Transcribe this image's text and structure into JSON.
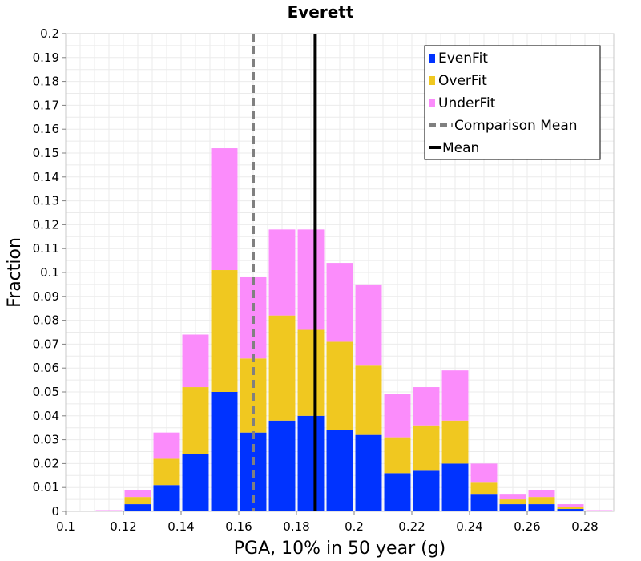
{
  "chart_data": {
    "type": "bar",
    "stacked": true,
    "title": "Everett",
    "xlabel": "PGA, 10% in 50 year (g)",
    "ylabel": "Fraction",
    "xlim": [
      0.1,
      0.29
    ],
    "ylim": [
      0,
      0.2
    ],
    "xticks": [
      "0.1",
      "0.12",
      "0.14",
      "0.16",
      "0.18",
      "0.2",
      "0.22",
      "0.24",
      "0.26",
      "0.28"
    ],
    "yticks": [
      "0",
      "0.01",
      "0.02",
      "0.03",
      "0.04",
      "0.05",
      "0.06",
      "0.07",
      "0.08",
      "0.09",
      "0.1",
      "0.11",
      "0.12",
      "0.13",
      "0.14",
      "0.15",
      "0.16",
      "0.17",
      "0.18",
      "0.19",
      "0.2"
    ],
    "bin_width": 0.01,
    "bin_starts": [
      0.1,
      0.11,
      0.12,
      0.13,
      0.14,
      0.15,
      0.16,
      0.17,
      0.18,
      0.19,
      0.2,
      0.21,
      0.22,
      0.23,
      0.24,
      0.25,
      0.26,
      0.27,
      0.28
    ],
    "series": [
      {
        "name": "EvenFit",
        "color": "#0033ff",
        "values": [
          0,
          0,
          0.003,
          0.011,
          0.024,
          0.05,
          0.033,
          0.038,
          0.04,
          0.034,
          0.032,
          0.016,
          0.017,
          0.02,
          0.007,
          0.003,
          0.003,
          0.001,
          0
        ]
      },
      {
        "name": "OverFit",
        "color": "#f0c820",
        "values": [
          0,
          0,
          0.003,
          0.011,
          0.028,
          0.051,
          0.031,
          0.044,
          0.036,
          0.037,
          0.029,
          0.015,
          0.019,
          0.018,
          0.005,
          0.002,
          0.003,
          0.001,
          0
        ]
      },
      {
        "name": "UnderFit",
        "color": "#fb8cfb",
        "values": [
          0,
          0.0005,
          0.003,
          0.011,
          0.022,
          0.051,
          0.034,
          0.036,
          0.042,
          0.033,
          0.034,
          0.018,
          0.016,
          0.021,
          0.008,
          0.002,
          0.003,
          0.001,
          0.0005
        ]
      }
    ],
    "lines": [
      {
        "name": "Comparison Mean",
        "x": 0.165,
        "color": "#808080",
        "style": "dashed"
      },
      {
        "name": "Mean",
        "x": 0.1865,
        "color": "#000000",
        "style": "solid"
      }
    ],
    "legend": {
      "position": "top-right",
      "entries": [
        {
          "label": "EvenFit",
          "kind": "box",
          "color": "#0033ff"
        },
        {
          "label": "OverFit",
          "kind": "box",
          "color": "#f0c820"
        },
        {
          "label": "UnderFit",
          "kind": "box",
          "color": "#fb8cfb"
        },
        {
          "label": "Comparison Mean",
          "kind": "dash",
          "color": "#808080"
        },
        {
          "label": "Mean",
          "kind": "line",
          "color": "#000000"
        }
      ]
    },
    "grid": true
  }
}
